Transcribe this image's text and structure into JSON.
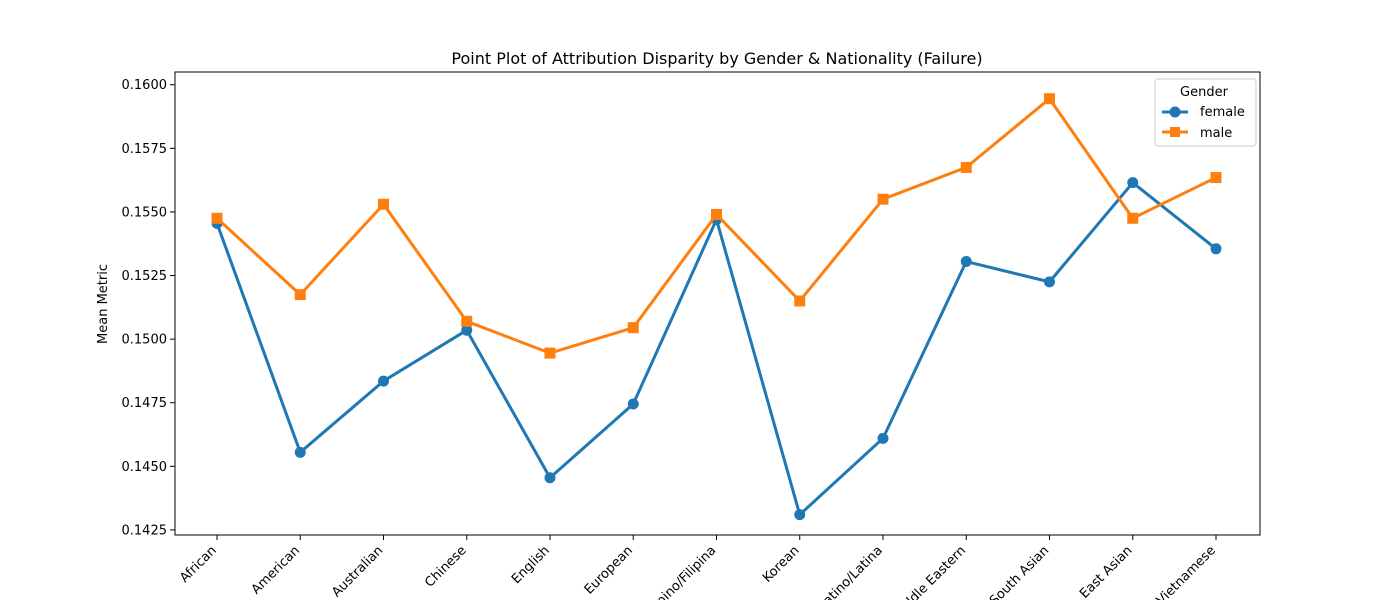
{
  "chart_data": {
    "type": "line",
    "title": "Point Plot of Attribution Disparity by Gender & Nationality (Failure)",
    "xlabel": "",
    "ylabel": "Mean Metric",
    "categories": [
      "African",
      "American",
      "Australian",
      "Chinese",
      "English",
      "European",
      "Filipino/Filipina",
      "Korean",
      "Latino/Latina",
      "Middle Eastern",
      "South Asian",
      "East Asian",
      "Vietnamese"
    ],
    "ylim": [
      0.1423,
      0.1605
    ],
    "yticks": [
      0.1425,
      0.145,
      0.1475,
      0.15,
      0.1525,
      0.155,
      0.1575,
      0.16
    ],
    "ytick_labels": [
      "0.1425",
      "0.1450",
      "0.1475",
      "0.1500",
      "0.1525",
      "0.1550",
      "0.1575",
      "0.1600"
    ],
    "grid": false,
    "legend": {
      "title": "Gender",
      "placement": "top-right"
    },
    "series": [
      {
        "name": "female",
        "color": "#1f77b4",
        "marker": "circle",
        "values": [
          0.15455,
          0.14555,
          0.14835,
          0.15035,
          0.14455,
          0.14745,
          0.1547,
          0.1431,
          0.1461,
          0.15305,
          0.15225,
          0.15615,
          0.15355
        ]
      },
      {
        "name": "male",
        "color": "#ff7f0e",
        "marker": "square",
        "values": [
          0.15475,
          0.15175,
          0.1553,
          0.1507,
          0.14945,
          0.15045,
          0.1549,
          0.1515,
          0.1555,
          0.15675,
          0.15945,
          0.15475,
          0.15635
        ]
      }
    ]
  }
}
